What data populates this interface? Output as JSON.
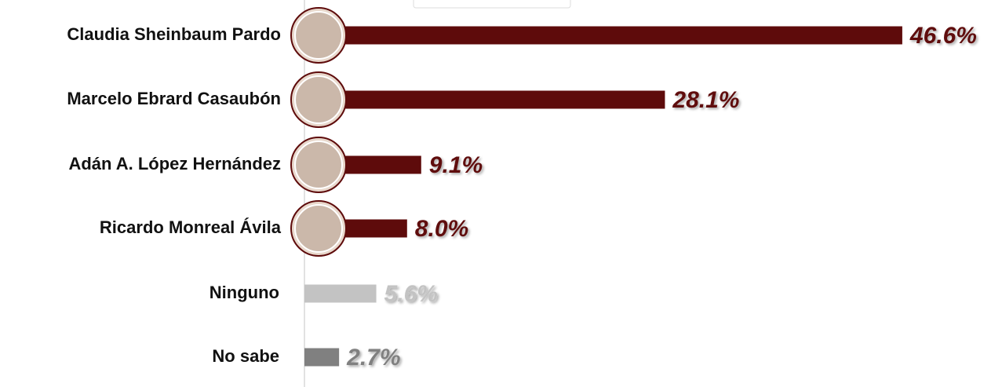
{
  "chart_data": {
    "type": "bar",
    "orientation": "horizontal",
    "categories": [
      "Claudia Sheinbaum Pardo",
      "Marcelo Ebrard Casaubón",
      "Adán A. López Hernández",
      "Ricardo Monreal Ávila",
      "Ninguno",
      "No sabe"
    ],
    "values": [
      46.6,
      28.1,
      9.1,
      8.0,
      5.6,
      2.7
    ],
    "value_labels": [
      "46.6%",
      "28.1%",
      "9.1%",
      "8.0%",
      "5.6%",
      "2.7%"
    ],
    "colors": [
      "#5e0b0b",
      "#5e0b0b",
      "#5e0b0b",
      "#5e0b0b",
      "#c3c3c3",
      "#808080"
    ]
  }
}
